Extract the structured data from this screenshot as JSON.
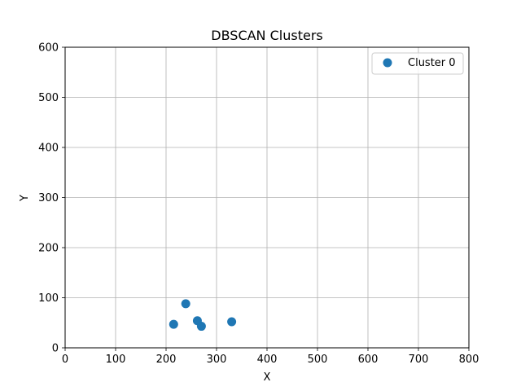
{
  "chart_data": {
    "type": "scatter",
    "title": "DBSCAN Clusters",
    "xlabel": "X",
    "ylabel": "Y",
    "xlim": [
      0,
      800
    ],
    "ylim": [
      0,
      600
    ],
    "xticks": [
      "0",
      "100",
      "200",
      "300",
      "400",
      "500",
      "600",
      "700",
      "800"
    ],
    "yticks": [
      "0",
      "100",
      "200",
      "300",
      "400",
      "500",
      "600"
    ],
    "grid": true,
    "legend_position": "top-right",
    "series": [
      {
        "name": "Cluster 0",
        "color": "#1f77b4",
        "points": [
          {
            "x": 215,
            "y": 47
          },
          {
            "x": 239,
            "y": 88
          },
          {
            "x": 262,
            "y": 54
          },
          {
            "x": 270,
            "y": 43
          },
          {
            "x": 330,
            "y": 52
          }
        ]
      }
    ]
  }
}
